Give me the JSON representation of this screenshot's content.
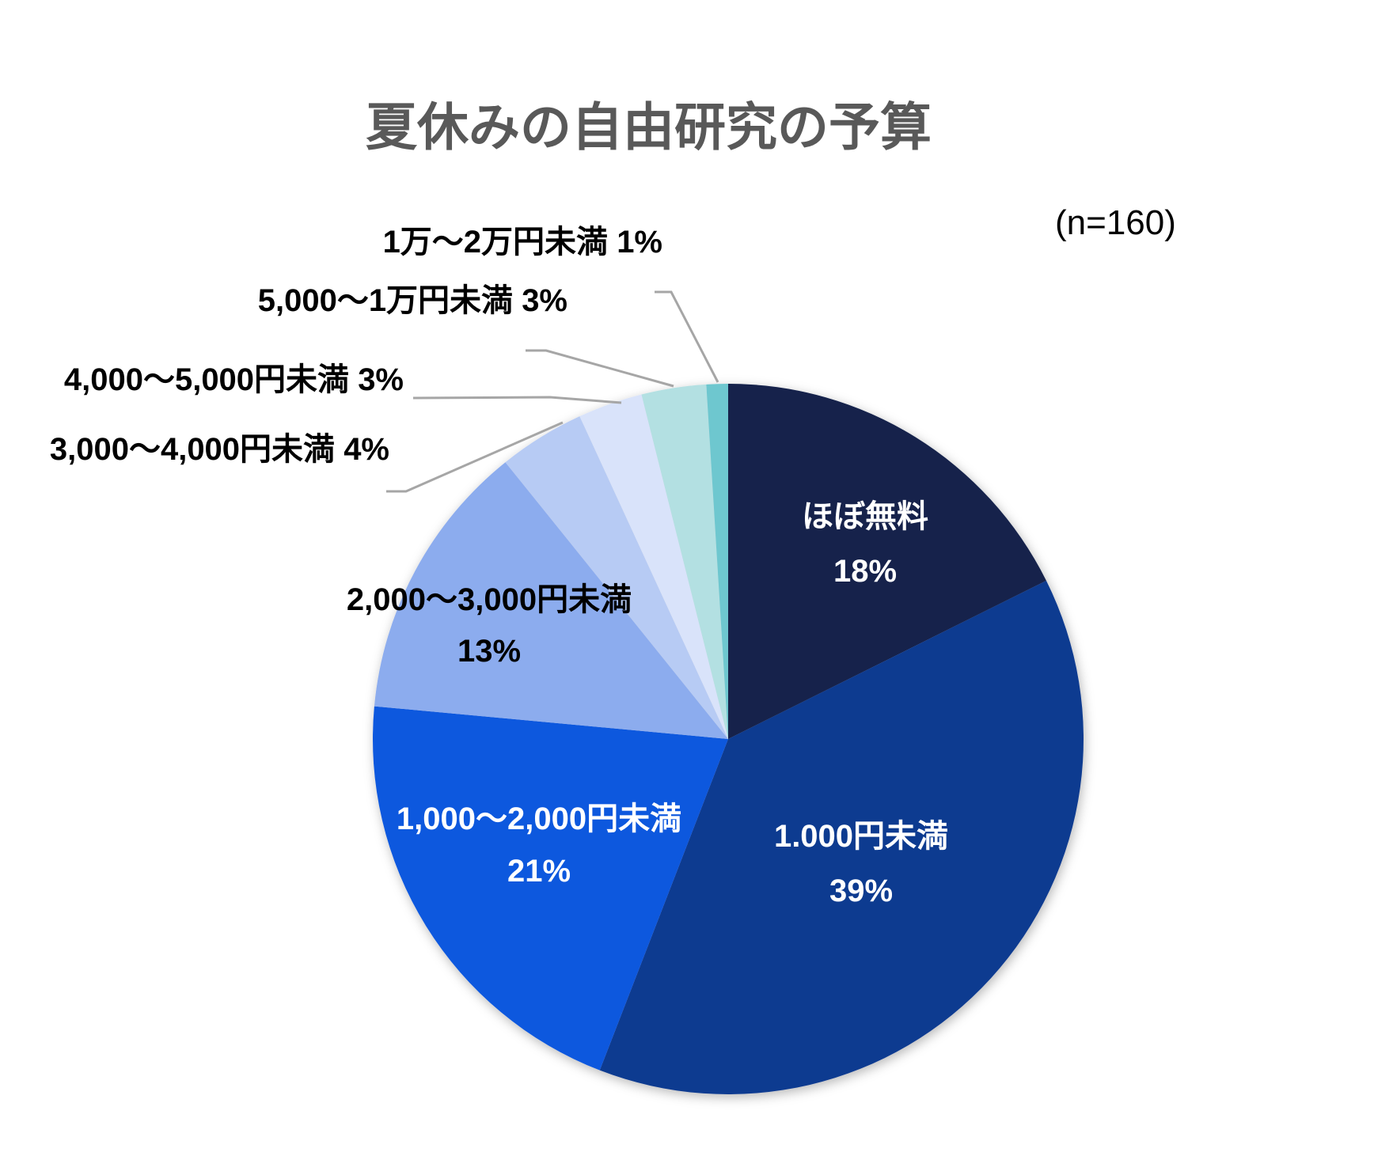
{
  "header": {
    "title": "夏休みの自由研究の予算",
    "sample_size_label": "(n=160)"
  },
  "chart_data": {
    "type": "pie",
    "title": "夏休みの自由研究の予算",
    "sample_size_label": "(n=160)",
    "sample_size": 160,
    "legend_position": "none",
    "title_color": "#595959",
    "leader_line_color": "#A6A6A6",
    "background_color": "#FFFFFF",
    "slices": [
      {
        "label": "ほぼ無料",
        "value": 18,
        "pct_label": "18%",
        "color": "#12214B",
        "label_placement": "inside",
        "label_color": "#FFFFFF"
      },
      {
        "label": "1.000円未満",
        "value": 39,
        "pct_label": "39%",
        "color": "#113A90",
        "label_placement": "inside",
        "label_color": "#FFFFFF"
      },
      {
        "label": "1,000〜2,000円未満",
        "value": 21,
        "pct_label": "21%",
        "color": "#1158DE",
        "label_placement": "inside",
        "label_color": "#FFFFFF"
      },
      {
        "label": "2,000〜3,000円未満",
        "value": 13,
        "pct_label": "13%",
        "color": "#8CACEE",
        "label_placement": "inside",
        "label_color": "#000000"
      },
      {
        "label": "3,000〜4,000円未満",
        "value": 4,
        "pct_label": "4%",
        "color": "#B7CBF4",
        "label_placement": "callout",
        "label_color": "#000000"
      },
      {
        "label": "4,000〜5,000円未満",
        "value": 3,
        "pct_label": "3%",
        "color": "#D9E3FA",
        "label_placement": "callout",
        "label_color": "#000000"
      },
      {
        "label": "5,000〜1万円未満",
        "value": 3,
        "pct_label": "3%",
        "color": "#B3E0E2",
        "label_placement": "callout",
        "label_color": "#000000"
      },
      {
        "label": "1万〜2万円未満",
        "value": 1,
        "pct_label": "1%",
        "color": "#6EC7CF",
        "label_placement": "callout",
        "label_color": "#000000"
      }
    ]
  }
}
